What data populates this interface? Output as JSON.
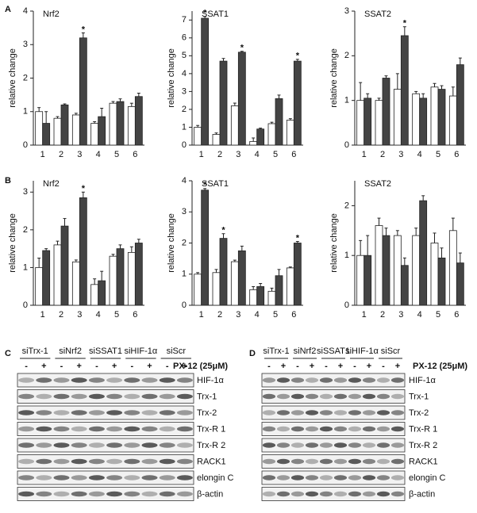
{
  "panel_labels": [
    "A",
    "B"
  ],
  "chart_data": [
    {
      "type": "bar",
      "title": "Nrf2",
      "y_label": "relative change",
      "categories": [
        "1",
        "2",
        "3",
        "4",
        "5",
        "6"
      ],
      "series": [
        {
          "color": "#ffffff",
          "values": [
            1.0,
            0.8,
            0.9,
            0.65,
            1.25,
            1.15
          ],
          "errors": [
            0.12,
            0.05,
            0.05,
            0.05,
            0.05,
            0.1
          ]
        },
        {
          "color": "#444444",
          "values": [
            0.65,
            1.2,
            3.2,
            0.85,
            1.3,
            1.45
          ],
          "errors": [
            0.35,
            0.03,
            0.15,
            0.25,
            0.08,
            0.1
          ]
        }
      ],
      "annotations": [
        {
          "text": "*",
          "category": "3"
        }
      ],
      "ylim": [
        0,
        4
      ],
      "yticks": [
        0,
        1,
        2,
        3,
        4
      ]
    },
    {
      "type": "bar",
      "title": "SSAT1",
      "y_label": "relative change",
      "categories": [
        "1",
        "2",
        "3",
        "4",
        "5",
        "6"
      ],
      "series": [
        {
          "color": "#ffffff",
          "values": [
            1.0,
            0.6,
            2.2,
            0.2,
            1.2,
            1.4
          ],
          "errors": [
            0.1,
            0.08,
            0.15,
            0.2,
            0.08,
            0.08
          ]
        },
        {
          "color": "#444444",
          "values": [
            7.1,
            4.7,
            5.2,
            0.9,
            2.6,
            4.7
          ],
          "errors": [
            0.1,
            0.15,
            0.05,
            0.05,
            0.2,
            0.1
          ]
        }
      ],
      "annotations": [
        {
          "text": "*",
          "category": "1"
        },
        {
          "text": "*",
          "category": "3"
        },
        {
          "text": "*",
          "category": "6"
        }
      ],
      "ylim": [
        0,
        7.5
      ],
      "yticks": [
        0,
        1,
        2,
        3,
        4,
        5,
        6,
        7
      ]
    },
    {
      "type": "bar",
      "title": "SSAT2",
      "y_label": "relative change",
      "categories": [
        "1",
        "2",
        "3",
        "4",
        "5",
        "6"
      ],
      "series": [
        {
          "color": "#ffffff",
          "values": [
            1.0,
            1.0,
            1.25,
            1.15,
            1.3,
            1.1
          ],
          "errors": [
            0.4,
            0.05,
            0.35,
            0.05,
            0.08,
            0.2
          ]
        },
        {
          "color": "#444444",
          "values": [
            1.05,
            1.5,
            2.45,
            1.05,
            1.25,
            1.8
          ],
          "errors": [
            0.1,
            0.05,
            0.2,
            0.1,
            0.08,
            0.15
          ]
        }
      ],
      "annotations": [
        {
          "text": "*",
          "category": "3"
        }
      ],
      "ylim": [
        0,
        3
      ],
      "yticks": [
        0,
        1,
        2,
        3
      ]
    },
    {
      "type": "bar",
      "title": "Nrf2",
      "y_label": "relative change",
      "categories": [
        "1",
        "2",
        "3",
        "4",
        "5",
        "6"
      ],
      "series": [
        {
          "color": "#ffffff",
          "values": [
            1.0,
            1.6,
            1.15,
            0.55,
            1.3,
            1.4
          ],
          "errors": [
            0.25,
            0.1,
            0.05,
            0.15,
            0.05,
            0.15
          ]
        },
        {
          "color": "#444444",
          "values": [
            1.45,
            2.1,
            2.85,
            0.65,
            1.5,
            1.65
          ],
          "errors": [
            0.05,
            0.2,
            0.15,
            0.25,
            0.1,
            0.1
          ]
        }
      ],
      "annotations": [
        {
          "text": "*",
          "category": "3"
        }
      ],
      "ylim": [
        0,
        3.3
      ],
      "yticks": [
        0,
        1,
        2,
        3
      ]
    },
    {
      "type": "bar",
      "title": "SSAT1",
      "y_label": "relative change",
      "categories": [
        "1",
        "2",
        "3",
        "4",
        "5",
        "6"
      ],
      "series": [
        {
          "color": "#ffffff",
          "values": [
            1.0,
            1.05,
            1.4,
            0.5,
            0.45,
            1.2
          ],
          "errors": [
            0.05,
            0.1,
            0.05,
            0.1,
            0.1,
            0.03
          ]
        },
        {
          "color": "#444444",
          "values": [
            3.7,
            2.15,
            1.75,
            0.6,
            0.95,
            2.0
          ],
          "errors": [
            0.05,
            0.15,
            0.15,
            0.1,
            0.2,
            0.05
          ]
        }
      ],
      "annotations": [
        {
          "text": "*",
          "category": "1"
        },
        {
          "text": "*",
          "category": "2"
        },
        {
          "text": "*",
          "category": "6"
        }
      ],
      "ylim": [
        0,
        4
      ],
      "yticks": [
        0,
        1,
        2,
        3,
        4
      ]
    },
    {
      "type": "bar",
      "title": "SSAT2",
      "y_label": "relative change",
      "categories": [
        "1",
        "2",
        "3",
        "4",
        "5",
        "6"
      ],
      "series": [
        {
          "color": "#ffffff",
          "values": [
            1.0,
            1.6,
            1.4,
            1.4,
            1.25,
            1.5
          ],
          "errors": [
            0.3,
            0.15,
            0.1,
            0.15,
            0.2,
            0.25
          ]
        },
        {
          "color": "#444444",
          "values": [
            1.0,
            1.4,
            0.8,
            2.1,
            0.95,
            0.85
          ],
          "errors": [
            0.4,
            0.15,
            0.15,
            0.1,
            0.2,
            0.2
          ]
        }
      ],
      "annotations": [],
      "ylim": [
        0,
        2.5
      ],
      "yticks": [
        0,
        1,
        2
      ]
    }
  ],
  "blots": [
    {
      "panel": "C",
      "groups": [
        "siTrx-1",
        "siNrf2",
        "siSSAT1",
        "siHIF-1α",
        "siScr"
      ],
      "signs": [
        "-",
        "+"
      ],
      "treatment": "PX-12 (25μM)",
      "rows": [
        "HIF-1α",
        "Trx-1",
        "Trx-2",
        "Trx-R 1",
        "Trx-R 2",
        "RACK1",
        "elongin C",
        "β-actin"
      ]
    },
    {
      "panel": "D",
      "groups": [
        "siTrx-1",
        "siNrf2",
        "siSSAT1",
        "siHIF-1α",
        "siScr"
      ],
      "signs": [
        "-",
        "+"
      ],
      "treatment": "PX-12 (25μM)",
      "rows": [
        "HIF-1α",
        "Trx-1",
        "Trx-2",
        "Trx-R 1",
        "Trx-R 2",
        "RACK1",
        "elongin C",
        "β-actin"
      ]
    }
  ]
}
